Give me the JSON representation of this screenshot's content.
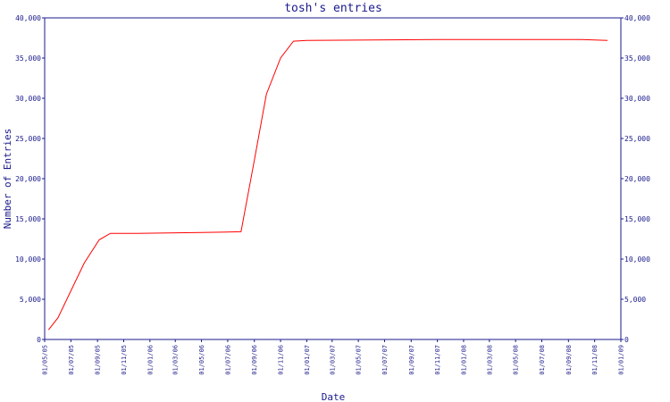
{
  "chart_data": {
    "type": "line",
    "title": "tosh's entries",
    "xlabel": "Date",
    "ylabel": "Number of Entries",
    "ylim": [
      0,
      40000
    ],
    "y_ticks": [
      0,
      5000,
      10000,
      15000,
      20000,
      25000,
      30000,
      35000,
      40000
    ],
    "y_tick_labels": [
      "0",
      "5,000",
      "10,000",
      "15,000",
      "20,000",
      "25,000",
      "30,000",
      "35,000",
      "40,000"
    ],
    "x_start": "2005-05-01",
    "x_end": "2009-01-01",
    "x_ticks": [
      "2005-05-01",
      "2005-07-01",
      "2005-09-01",
      "2005-11-01",
      "2006-01-01",
      "2006-03-01",
      "2006-05-01",
      "2006-07-01",
      "2006-09-01",
      "2006-11-01",
      "2007-01-01",
      "2007-03-01",
      "2007-05-01",
      "2007-07-01",
      "2007-09-01",
      "2007-11-01",
      "2008-01-01",
      "2008-03-01",
      "2008-05-01",
      "2008-07-01",
      "2008-09-01",
      "2008-11-01",
      "2009-01-01"
    ],
    "x_tick_labels": [
      "01/05/05",
      "01/07/05",
      "01/09/05",
      "01/11/05",
      "01/01/06",
      "01/03/06",
      "01/05/06",
      "01/07/06",
      "01/09/06",
      "01/11/06",
      "01/01/07",
      "01/03/07",
      "01/05/07",
      "01/07/07",
      "01/09/07",
      "01/11/07",
      "01/01/08",
      "01/03/08",
      "01/05/08",
      "01/07/08",
      "01/09/08",
      "01/11/08",
      "01/01/09"
    ],
    "series": [
      {
        "color": "#ff0000",
        "x": [
          "2005-05-10",
          "2005-06-01",
          "2005-08-01",
          "2005-09-05",
          "2005-10-01",
          "2005-12-01",
          "2006-05-01",
          "2006-08-01",
          "2006-09-01",
          "2006-09-29",
          "2006-11-01",
          "2006-12-01",
          "2007-01-01",
          "2007-11-01",
          "2008-10-01",
          "2008-12-01"
        ],
        "values": [
          1200,
          2700,
          9500,
          12400,
          13200,
          13200,
          13300,
          13400,
          22300,
          30500,
          35000,
          37100,
          37200,
          37300,
          37300,
          37200
        ]
      }
    ],
    "grid": false,
    "legend": "none"
  }
}
